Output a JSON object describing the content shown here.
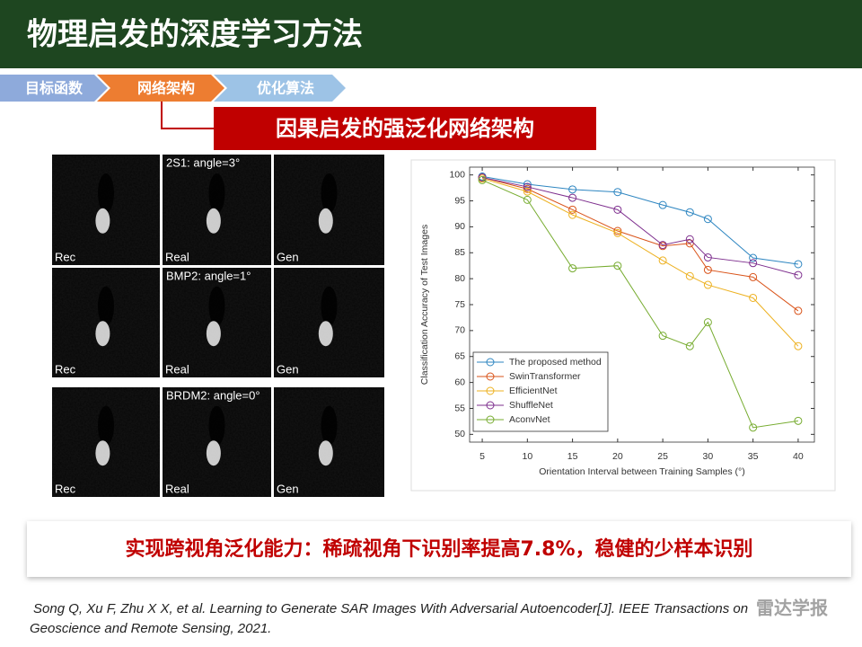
{
  "header": {
    "title": "物理启发的深度学习方法"
  },
  "breadcrumb": [
    "目标函数",
    "网络架构",
    "优化算法"
  ],
  "subtitle": "因果启发的强泛化网络架构",
  "sar_grid": {
    "rows": [
      "2S1: angle=3°",
      "BMP2: angle=1°",
      "BRDM2: angle=0°"
    ],
    "columns": [
      "Rec",
      "Real",
      "Gen"
    ]
  },
  "conclusion": "实现跨视角泛化能力：稀疏视角下识别率提高7.8%，稳健的少样本识别",
  "citation": [
    "Song Q, Xu F, Zhu X X, et al. Learning to Generate SAR Images With Adversarial Autoencoder[J]. IEEE Transactions on",
    "Geoscience and Remote Sensing, 2021."
  ],
  "watermark": "雷达学报",
  "chart_data": {
    "type": "line",
    "x_label": "Orientation Interval between Training Samples (°)",
    "y_label": "Classification Accuracy of Test Images",
    "x": [
      5,
      10,
      15,
      20,
      25,
      28,
      30,
      35,
      40
    ],
    "series": [
      {
        "name": "The proposed method",
        "color": "#2e86c1",
        "values": [
          99.7,
          98.2,
          97.2,
          96.7,
          94.2,
          92.8,
          91.5,
          84,
          82.8
        ]
      },
      {
        "name": "SwinTransformer",
        "color": "#d95319",
        "values": [
          99.5,
          97.3,
          93.3,
          89.2,
          86.3,
          86.8,
          81.7,
          80.3,
          73.8
        ]
      },
      {
        "name": "EfficientNet",
        "color": "#edb120",
        "values": [
          99.3,
          96.8,
          92.3,
          88.8,
          83.5,
          80.5,
          78.8,
          76.3,
          67
        ]
      },
      {
        "name": "ShuffleNet",
        "color": "#7e2f8e",
        "values": [
          99.5,
          97.7,
          95.6,
          93.3,
          86.5,
          87.6,
          84.1,
          83,
          80.7
        ]
      },
      {
        "name": "AconvNet",
        "color": "#77ac30",
        "values": [
          99,
          95.2,
          82,
          82.5,
          69,
          67,
          71.6,
          51.3,
          52.6
        ]
      }
    ],
    "xlim": [
      3.6,
      41.8
    ],
    "ylim": [
      48.5,
      101.5
    ],
    "xticks": [
      5,
      10,
      15,
      20,
      25,
      30,
      35,
      40
    ],
    "yticks": [
      50,
      55,
      60,
      65,
      70,
      75,
      80,
      85,
      90,
      95,
      100
    ],
    "grid": false,
    "legend": "lower left"
  }
}
